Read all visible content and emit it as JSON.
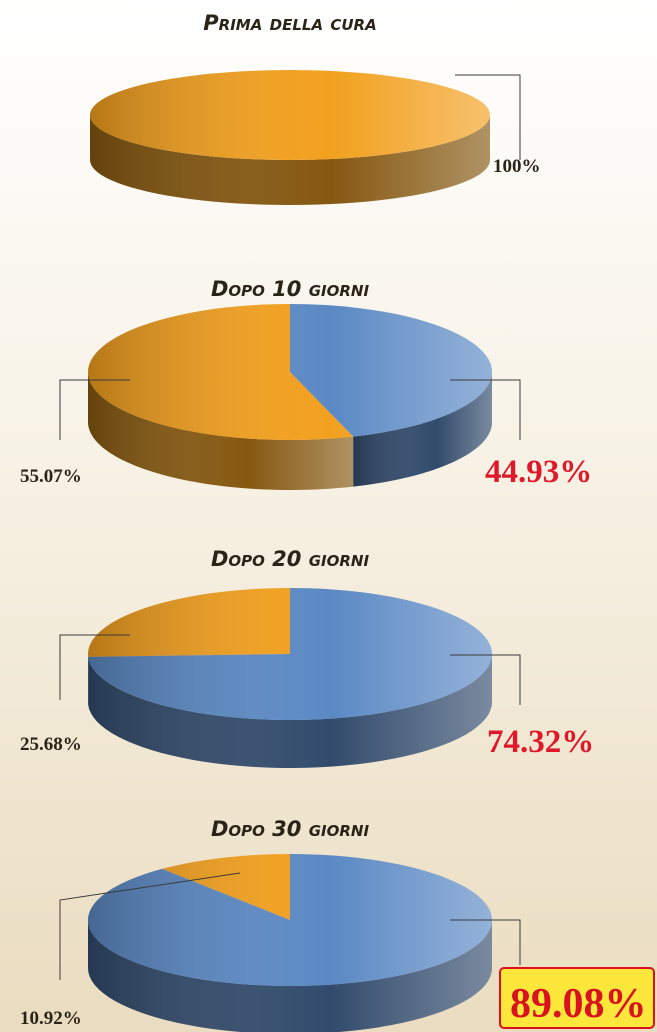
{
  "chart_data": [
    {
      "type": "pie",
      "title": "Prima della cura",
      "values": [
        100
      ],
      "value_labels": [
        "100%"
      ],
      "colors": [
        "#f2a01e"
      ]
    },
    {
      "type": "pie",
      "title": "Dopo 10 giorni",
      "values": [
        55.07,
        44.93
      ],
      "value_labels": [
        "55.07%",
        "44.93%"
      ],
      "colors": [
        "#f2a01e",
        "#5b89c4"
      ]
    },
    {
      "type": "pie",
      "title": "Dopo 20 giorni",
      "values": [
        25.68,
        74.32
      ],
      "value_labels": [
        "25.68%",
        "74.32%"
      ],
      "colors": [
        "#f2a01e",
        "#5b89c4"
      ]
    },
    {
      "type": "pie",
      "title": "Dopo 30 giorni",
      "values": [
        10.92,
        89.08
      ],
      "value_labels": [
        "10.92%",
        "89.08%"
      ],
      "colors": [
        "#f2a01e",
        "#5b89c4"
      ]
    }
  ]
}
